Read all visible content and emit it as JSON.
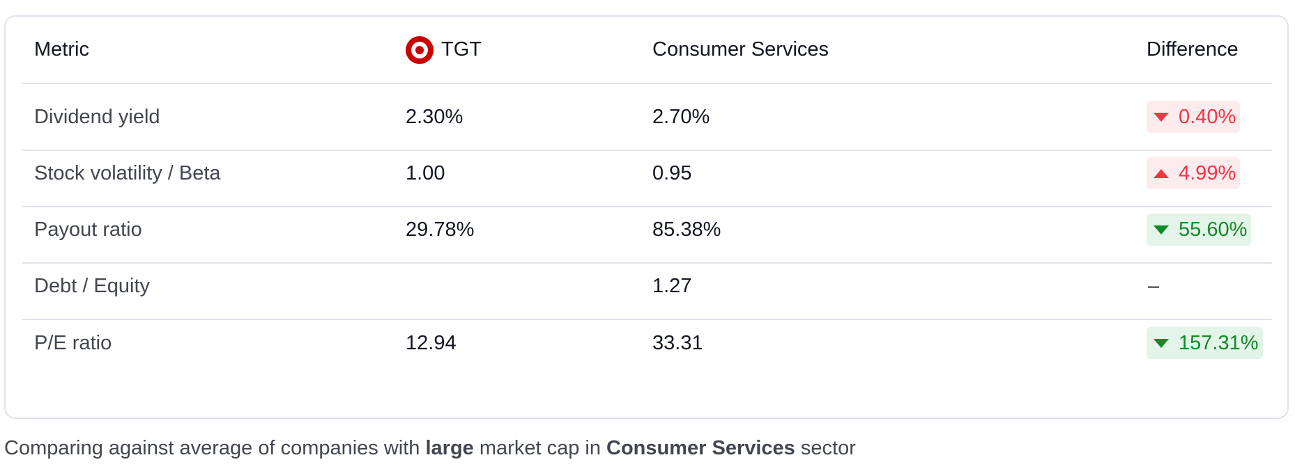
{
  "table": {
    "headers": {
      "metric": "Metric",
      "ticker": "TGT",
      "sector": "Consumer Services",
      "difference": "Difference"
    },
    "rows": [
      {
        "metric": "Dividend yield",
        "ticker_value": "2.30%",
        "sector_value": "2.70%",
        "difference": "0.40%",
        "direction": "down",
        "tone": "red"
      },
      {
        "metric": "Stock volatility / Beta",
        "ticker_value": "1.00",
        "sector_value": "0.95",
        "difference": "4.99%",
        "direction": "up",
        "tone": "red"
      },
      {
        "metric": "Payout ratio",
        "ticker_value": "29.78%",
        "sector_value": "85.38%",
        "difference": "55.60%",
        "direction": "down",
        "tone": "green"
      },
      {
        "metric": "Debt / Equity",
        "ticker_value": "",
        "sector_value": "1.27",
        "difference": "–",
        "direction": "none",
        "tone": "none"
      },
      {
        "metric": "P/E ratio",
        "ticker_value": "12.94",
        "sector_value": "33.31",
        "difference": "157.31%",
        "direction": "down",
        "tone": "green"
      }
    ]
  },
  "footer": {
    "prefix": "Comparing against average of companies with ",
    "cap": "large",
    "middle": " market cap in ",
    "sector": "Consumer Services",
    "suffix": " sector"
  },
  "colors": {
    "negative": "#f23645",
    "positive": "#138a28",
    "brand": "#cc0000"
  }
}
